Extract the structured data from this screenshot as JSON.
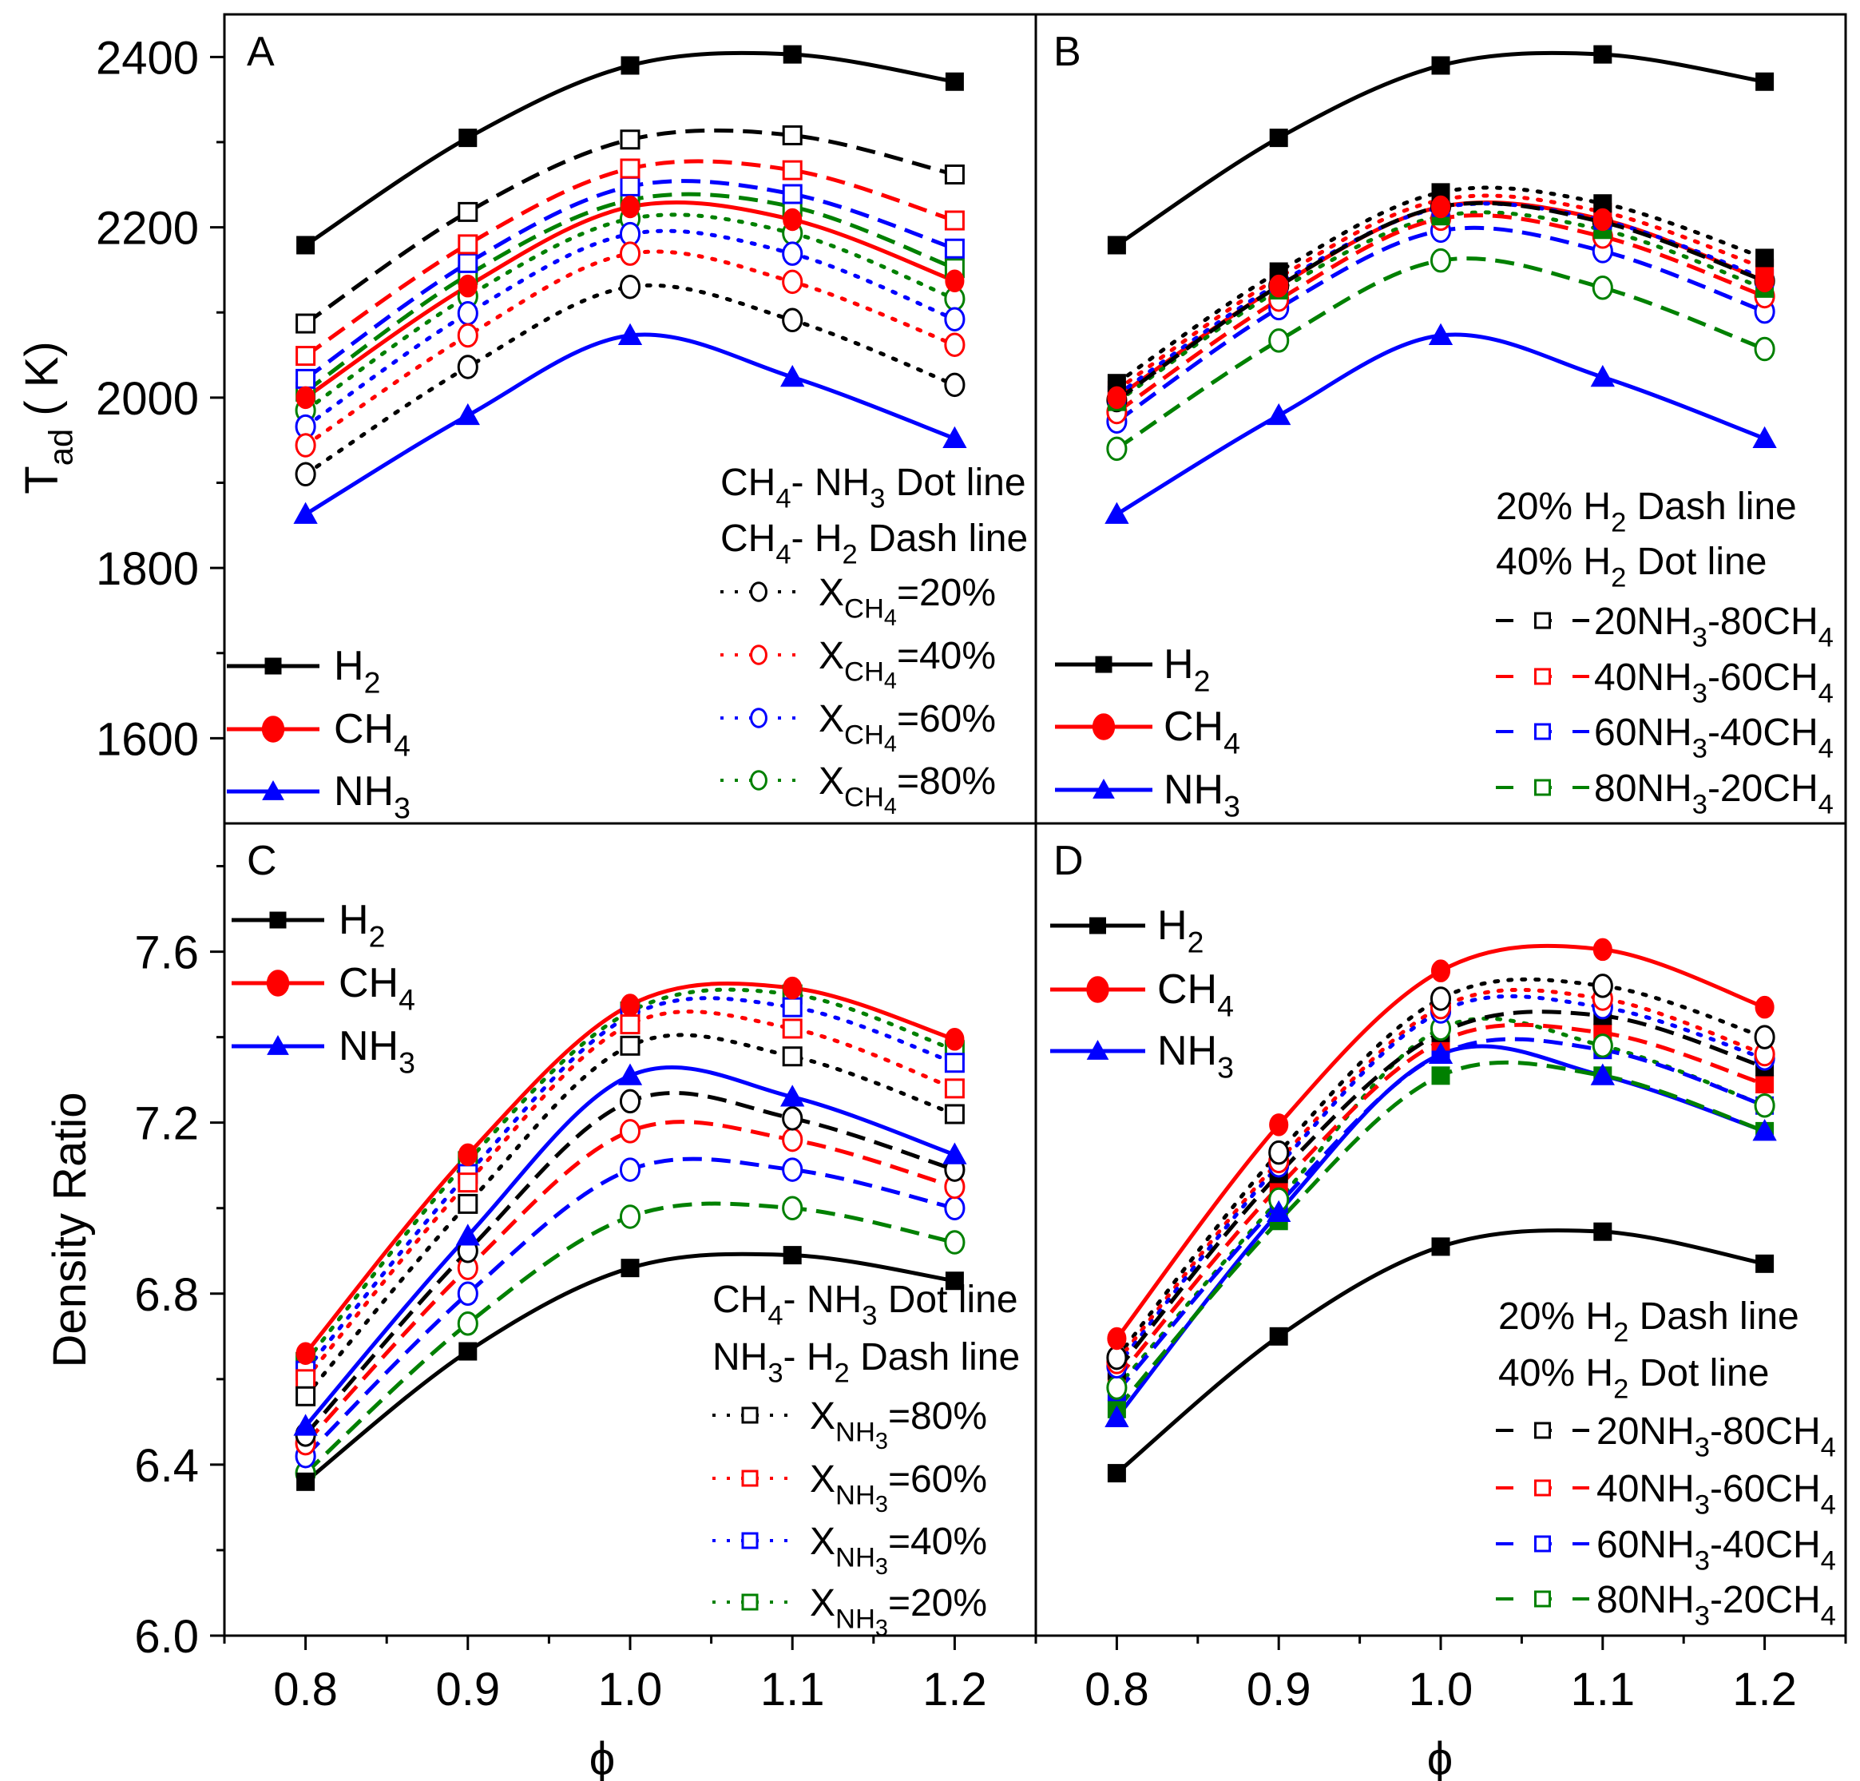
{
  "figure": {
    "ylabel_top": "T_{ad} ( K)",
    "ylabel_bottom": "Density Ratio",
    "xlabel": "ϕ"
  },
  "chart_data": [
    {
      "panel": "A",
      "type": "line",
      "x": [
        0.8,
        0.9,
        1.0,
        1.1,
        1.2
      ],
      "xlim": [
        0.75,
        1.25
      ],
      "ylim": [
        1500,
        2450
      ],
      "yticks": [
        1600,
        1800,
        2000,
        2200,
        2400
      ],
      "ytick_labels": [
        "1600",
        "1800",
        "2000",
        "2200",
        "2400"
      ],
      "xticks": [
        0.8,
        0.9,
        1.0,
        1.1,
        1.2
      ],
      "xtick_labels": [
        "0.8",
        "0.9",
        "1.0",
        "1.1",
        "1.2"
      ],
      "ylabel": "T_ad (K)",
      "xlabel": "ϕ",
      "series": [
        {
          "name": "H2",
          "color": "#000000",
          "style": "solid",
          "marker": "square",
          "fill": true,
          "y": [
            2179,
            2305,
            2390,
            2403,
            2371
          ]
        },
        {
          "name": "CH4",
          "color": "#ff0000",
          "style": "solid",
          "marker": "circle",
          "fill": true,
          "y": [
            2000,
            2131,
            2224,
            2209,
            2137
          ]
        },
        {
          "name": "NH3",
          "color": "#0000ff",
          "style": "solid",
          "marker": "triangle",
          "fill": true,
          "y": [
            1863,
            1979,
            2073,
            2024,
            1952
          ]
        },
        {
          "name": "CH4-NH3 X_CH4=20%",
          "color": "#000000",
          "style": "dot",
          "marker": "circle",
          "fill": false,
          "y": [
            1910,
            2036,
            2130,
            2091,
            2015
          ]
        },
        {
          "name": "CH4-NH3 X_CH4=40%",
          "color": "#ff0000",
          "style": "dot",
          "marker": "circle",
          "fill": false,
          "y": [
            1944,
            2073,
            2169,
            2136,
            2062
          ]
        },
        {
          "name": "CH4-NH3 X_CH4=60%",
          "color": "#0000ff",
          "style": "dot",
          "marker": "circle",
          "fill": false,
          "y": [
            1966,
            2099,
            2192,
            2169,
            2092
          ]
        },
        {
          "name": "CH4-NH3 X_CH4=80%",
          "color": "#008000",
          "style": "dot",
          "marker": "circle",
          "fill": false,
          "y": [
            1985,
            2119,
            2210,
            2193,
            2116
          ]
        },
        {
          "name": "CH4-H2 X_CH4=20%",
          "color": "#000000",
          "style": "dash",
          "marker": "square",
          "fill": false,
          "y": [
            2087,
            2218,
            2303,
            2308,
            2262
          ]
        },
        {
          "name": "CH4-H2 X_CH4=40%",
          "color": "#ff0000",
          "style": "dash",
          "marker": "square",
          "fill": false,
          "y": [
            2049,
            2180,
            2269,
            2267,
            2208
          ]
        },
        {
          "name": "CH4-H2 X_CH4=60%",
          "color": "#0000ff",
          "style": "dash",
          "marker": "square",
          "fill": false,
          "y": [
            2022,
            2158,
            2248,
            2239,
            2175
          ]
        },
        {
          "name": "CH4-H2 X_CH4=80%",
          "color": "#008000",
          "style": "dash",
          "marker": "square",
          "fill": false,
          "y": [
            2007,
            2144,
            2232,
            2224,
            2152
          ]
        }
      ],
      "legend_main": [
        {
          "label": "H_{2}",
          "series": 0
        },
        {
          "label": "CH_{4}",
          "series": 1
        },
        {
          "label": "NH_{3}",
          "series": 2
        }
      ],
      "legend_notes": [
        "CH_{4}- NH_{3} Dot line",
        "CH_{4}- H_{2} Dash line"
      ],
      "legend_entries": [
        {
          "label": "X_{CH_{4}}=20%",
          "color": "#000000",
          "style": "dot",
          "marker": "circle",
          "fill": false
        },
        {
          "label": "X_{CH_{4}}=40%",
          "color": "#ff0000",
          "style": "dot",
          "marker": "circle",
          "fill": false
        },
        {
          "label": "X_{CH_{4}}=60%",
          "color": "#0000ff",
          "style": "dot",
          "marker": "circle",
          "fill": false
        },
        {
          "label": "X_{CH_{4}}=80%",
          "color": "#008000",
          "style": "dot",
          "marker": "circle",
          "fill": false
        }
      ]
    },
    {
      "panel": "B",
      "type": "line",
      "x": [
        0.8,
        0.9,
        1.0,
        1.1,
        1.2
      ],
      "xlim": [
        0.75,
        1.25
      ],
      "ylim": [
        1500,
        2450
      ],
      "yticks": [
        1600,
        1800,
        2000,
        2200,
        2400
      ],
      "ytick_labels": [],
      "xticks": [
        0.8,
        0.9,
        1.0,
        1.1,
        1.2
      ],
      "xtick_labels": [],
      "ylabel": "T_ad (K)",
      "xlabel": "ϕ",
      "series": [
        {
          "name": "H2",
          "color": "#000000",
          "style": "solid",
          "marker": "square",
          "fill": true,
          "y": [
            2179,
            2305,
            2390,
            2403,
            2371
          ]
        },
        {
          "name": "CH4",
          "color": "#ff0000",
          "style": "solid",
          "marker": "circle",
          "fill": true,
          "y": [
            2000,
            2131,
            2224,
            2209,
            2137
          ]
        },
        {
          "name": "NH3",
          "color": "#0000ff",
          "style": "solid",
          "marker": "triangle",
          "fill": true,
          "y": [
            1863,
            1979,
            2073,
            2024,
            1952
          ]
        },
        {
          "name": "40% H2 20NH3-80CH4",
          "color": "#000000",
          "style": "dot",
          "marker": "square",
          "fill": true,
          "y": [
            2017,
            2148,
            2241,
            2228,
            2164
          ]
        },
        {
          "name": "40% H2 40NH3-60CH4",
          "color": "#ff0000",
          "style": "dot",
          "marker": "square",
          "fill": true,
          "y": [
            2009,
            2141,
            2232,
            2218,
            2152
          ]
        },
        {
          "name": "40% H2 60NH3-40CH4",
          "color": "#0000ff",
          "style": "dot",
          "marker": "square",
          "fill": true,
          "y": [
            2003,
            2134,
            2223,
            2208,
            2140
          ]
        },
        {
          "name": "40% H2 80NH3-20CH4",
          "color": "#008000",
          "style": "dot",
          "marker": "square",
          "fill": true,
          "y": [
            1995,
            2126,
            2213,
            2197,
            2128
          ]
        },
        {
          "name": "20% H2 20NH3-80CH4",
          "color": "#000000",
          "style": "dash",
          "marker": "circle",
          "fill": false,
          "y": [
            1997,
            2131,
            2224,
            2206,
            2137
          ]
        },
        {
          "name": "20% H2 40NH3-60CH4",
          "color": "#ff0000",
          "style": "dash",
          "marker": "circle",
          "fill": false,
          "y": [
            1983,
            2115,
            2210,
            2189,
            2119
          ]
        },
        {
          "name": "20% H2 60NH3-40CH4",
          "color": "#0000ff",
          "style": "dash",
          "marker": "circle",
          "fill": false,
          "y": [
            1972,
            2105,
            2196,
            2172,
            2101
          ]
        },
        {
          "name": "20% H2 80NH3-20CH4",
          "color": "#008000",
          "style": "dash",
          "marker": "circle",
          "fill": false,
          "y": [
            1940,
            2067,
            2161,
            2129,
            2057
          ]
        }
      ],
      "legend_main": [
        {
          "label": "H_{2}",
          "series": 0
        },
        {
          "label": "CH_{4}",
          "series": 1
        },
        {
          "label": "NH_{3}",
          "series": 2
        }
      ],
      "legend_notes": [
        "20% H_{2} Dash line",
        "40% H_{2} Dot line"
      ],
      "legend_entries": [
        {
          "label": "20NH_{3}-80CH_{4}",
          "color": "#000000",
          "style": "dash",
          "marker": "square",
          "fill": false
        },
        {
          "label": "40NH_{3}-60CH_{4}",
          "color": "#ff0000",
          "style": "dash",
          "marker": "square",
          "fill": false
        },
        {
          "label": "60NH_{3}-40CH_{4}",
          "color": "#0000ff",
          "style": "dash",
          "marker": "square",
          "fill": false
        },
        {
          "label": "80NH_{3}-20CH_{4}",
          "color": "#008000",
          "style": "dash",
          "marker": "square",
          "fill": false
        }
      ]
    },
    {
      "panel": "C",
      "type": "line",
      "x": [
        0.8,
        0.9,
        1.0,
        1.1,
        1.2
      ],
      "xlim": [
        0.75,
        1.25
      ],
      "ylim": [
        6.0,
        7.9
      ],
      "yticks": [
        6.0,
        6.4,
        6.8,
        7.2,
        7.6
      ],
      "ytick_labels": [
        "6.0",
        "6.4",
        "6.8",
        "7.2",
        "7.6"
      ],
      "xticks": [
        0.8,
        0.9,
        1.0,
        1.1,
        1.2
      ],
      "xtick_labels": [
        "0.8",
        "0.9",
        "1.0",
        "1.1",
        "1.2"
      ],
      "ylabel": "Density Ratio",
      "xlabel": "ϕ",
      "series": [
        {
          "name": "H2",
          "color": "#000000",
          "style": "solid",
          "marker": "square",
          "fill": true,
          "y": [
            6.36,
            6.665,
            6.86,
            6.89,
            6.83
          ]
        },
        {
          "name": "CH4",
          "color": "#ff0000",
          "style": "solid",
          "marker": "circle",
          "fill": true,
          "y": [
            6.66,
            7.125,
            7.475,
            7.515,
            7.395
          ]
        },
        {
          "name": "NH3",
          "color": "#0000ff",
          "style": "solid",
          "marker": "triangle",
          "fill": true,
          "y": [
            6.49,
            6.935,
            7.31,
            7.26,
            7.125
          ]
        },
        {
          "name": "CH4-NH3 X_NH3=80%",
          "color": "#000000",
          "style": "dot",
          "marker": "square",
          "fill": false,
          "y": [
            6.56,
            7.01,
            7.38,
            7.355,
            7.22
          ]
        },
        {
          "name": "CH4-NH3 X_NH3=60%",
          "color": "#ff0000",
          "style": "dot",
          "marker": "square",
          "fill": false,
          "y": [
            6.6,
            7.06,
            7.43,
            7.42,
            7.28
          ]
        },
        {
          "name": "CH4-NH3 X_NH3=40%",
          "color": "#0000ff",
          "style": "dot",
          "marker": "square",
          "fill": false,
          "y": [
            6.62,
            7.08,
            7.45,
            7.47,
            7.34
          ]
        },
        {
          "name": "CH4-NH3 X_NH3=20%",
          "color": "#008000",
          "style": "dot",
          "marker": "square",
          "fill": false,
          "y": [
            6.64,
            7.11,
            7.46,
            7.5,
            7.37
          ]
        },
        {
          "name": "NH3-H2 X_NH3=80%",
          "color": "#000000",
          "style": "dash",
          "marker": "circle",
          "fill": false,
          "y": [
            6.47,
            6.9,
            7.25,
            7.21,
            7.09
          ]
        },
        {
          "name": "NH3-H2 X_NH3=60%",
          "color": "#ff0000",
          "style": "dash",
          "marker": "circle",
          "fill": false,
          "y": [
            6.45,
            6.86,
            7.18,
            7.16,
            7.05
          ]
        },
        {
          "name": "NH3-H2 X_NH3=40%",
          "color": "#0000ff",
          "style": "dash",
          "marker": "circle",
          "fill": false,
          "y": [
            6.42,
            6.8,
            7.09,
            7.09,
            7.0
          ]
        },
        {
          "name": "NH3-H2 X_NH3=20%",
          "color": "#008000",
          "style": "dash",
          "marker": "circle",
          "fill": false,
          "y": [
            6.38,
            6.73,
            6.98,
            7.0,
            6.92
          ]
        }
      ],
      "legend_main": [
        {
          "label": "H_{2}",
          "series": 0
        },
        {
          "label": "CH_{4}",
          "series": 1
        },
        {
          "label": "NH_{3}",
          "series": 2
        }
      ],
      "legend_notes": [
        "CH_{4}- NH_{3} Dot line",
        "NH_{3}- H_{2} Dash line"
      ],
      "legend_entries": [
        {
          "label": "X_{NH_{3}}=80%",
          "color": "#000000",
          "style": "dot",
          "marker": "square",
          "fill": false
        },
        {
          "label": "X_{NH_{3}}=60%",
          "color": "#ff0000",
          "style": "dot",
          "marker": "square",
          "fill": false
        },
        {
          "label": "X_{NH_{3}}=40%",
          "color": "#0000ff",
          "style": "dot",
          "marker": "square",
          "fill": false
        },
        {
          "label": "X_{NH_{3}}=20%",
          "color": "#008000",
          "style": "dot",
          "marker": "square",
          "fill": false
        }
      ]
    },
    {
      "panel": "D",
      "type": "line",
      "x": [
        0.8,
        0.9,
        1.0,
        1.1,
        1.2
      ],
      "xlim": [
        0.75,
        1.25
      ],
      "ylim": [
        6.0,
        7.9
      ],
      "yticks": [
        6.0,
        6.4,
        6.8,
        7.2,
        7.6
      ],
      "ytick_labels": [],
      "xticks": [
        0.8,
        0.9,
        1.0,
        1.1,
        1.2
      ],
      "xtick_labels": [
        "0.8",
        "0.9",
        "1.0",
        "1.1",
        "1.2"
      ],
      "ylabel": "Density Ratio",
      "xlabel": "ϕ",
      "series": [
        {
          "name": "H2",
          "color": "#000000",
          "style": "solid",
          "marker": "square",
          "fill": true,
          "y": [
            6.38,
            6.7,
            6.91,
            6.945,
            6.87
          ]
        },
        {
          "name": "CH4",
          "color": "#ff0000",
          "style": "solid",
          "marker": "circle",
          "fill": true,
          "y": [
            6.695,
            7.195,
            7.555,
            7.605,
            7.47
          ]
        },
        {
          "name": "NH3",
          "color": "#0000ff",
          "style": "solid",
          "marker": "triangle",
          "fill": true,
          "y": [
            6.51,
            6.99,
            7.36,
            7.31,
            7.18
          ]
        },
        {
          "name": "40% H2 20NH3-80CH4",
          "color": "#000000",
          "style": "dot",
          "marker": "circle",
          "fill": false,
          "y": [
            6.65,
            7.13,
            7.49,
            7.52,
            7.4
          ]
        },
        {
          "name": "40% H2 40NH3-60CH4",
          "color": "#ff0000",
          "style": "dot",
          "marker": "circle",
          "fill": false,
          "y": [
            6.64,
            7.11,
            7.47,
            7.49,
            7.36
          ]
        },
        {
          "name": "40% H2 60NH3-40CH4",
          "color": "#0000ff",
          "style": "dot",
          "marker": "circle",
          "fill": false,
          "y": [
            6.63,
            7.1,
            7.46,
            7.47,
            7.35
          ]
        },
        {
          "name": "40% H2 80NH3-20CH4",
          "color": "#008000",
          "style": "dot",
          "marker": "circle",
          "fill": false,
          "y": [
            6.58,
            7.02,
            7.42,
            7.38,
            7.24
          ]
        },
        {
          "name": "20% H2 20NH3-80CH4",
          "color": "#000000",
          "style": "dash",
          "marker": "square",
          "fill": true,
          "y": [
            6.62,
            7.08,
            7.41,
            7.45,
            7.33
          ]
        },
        {
          "name": "20% H2 40NH3-60CH4",
          "color": "#ff0000",
          "style": "dash",
          "marker": "square",
          "fill": true,
          "y": [
            6.6,
            7.05,
            7.39,
            7.41,
            7.29
          ]
        },
        {
          "name": "20% H2 60NH3-40CH4",
          "color": "#0000ff",
          "style": "dash",
          "marker": "square",
          "fill": true,
          "y": [
            6.57,
            7.01,
            7.36,
            7.37,
            7.24
          ]
        },
        {
          "name": "20% H2 80NH3-20CH4",
          "color": "#008000",
          "style": "dash",
          "marker": "square",
          "fill": true,
          "y": [
            6.53,
            6.97,
            7.31,
            7.31,
            7.18
          ]
        }
      ],
      "legend_main": [
        {
          "label": "H_{2}",
          "series": 0
        },
        {
          "label": "CH_{4}",
          "series": 1
        },
        {
          "label": "NH_{3}",
          "series": 2
        }
      ],
      "legend_notes": [
        "20% H_{2} Dash line",
        "40% H_{2} Dot line"
      ],
      "legend_entries": [
        {
          "label": "20NH_{3}-80CH_{4}",
          "color": "#000000",
          "style": "dash",
          "marker": "square",
          "fill": false
        },
        {
          "label": "40NH_{3}-60CH_{4}",
          "color": "#ff0000",
          "style": "dash",
          "marker": "square",
          "fill": false
        },
        {
          "label": "60NH_{3}-40CH_{4}",
          "color": "#0000ff",
          "style": "dash",
          "marker": "square",
          "fill": false
        },
        {
          "label": "80NH_{3}-20CH_{4}",
          "color": "#008000",
          "style": "dash",
          "marker": "square",
          "fill": false
        }
      ]
    }
  ]
}
